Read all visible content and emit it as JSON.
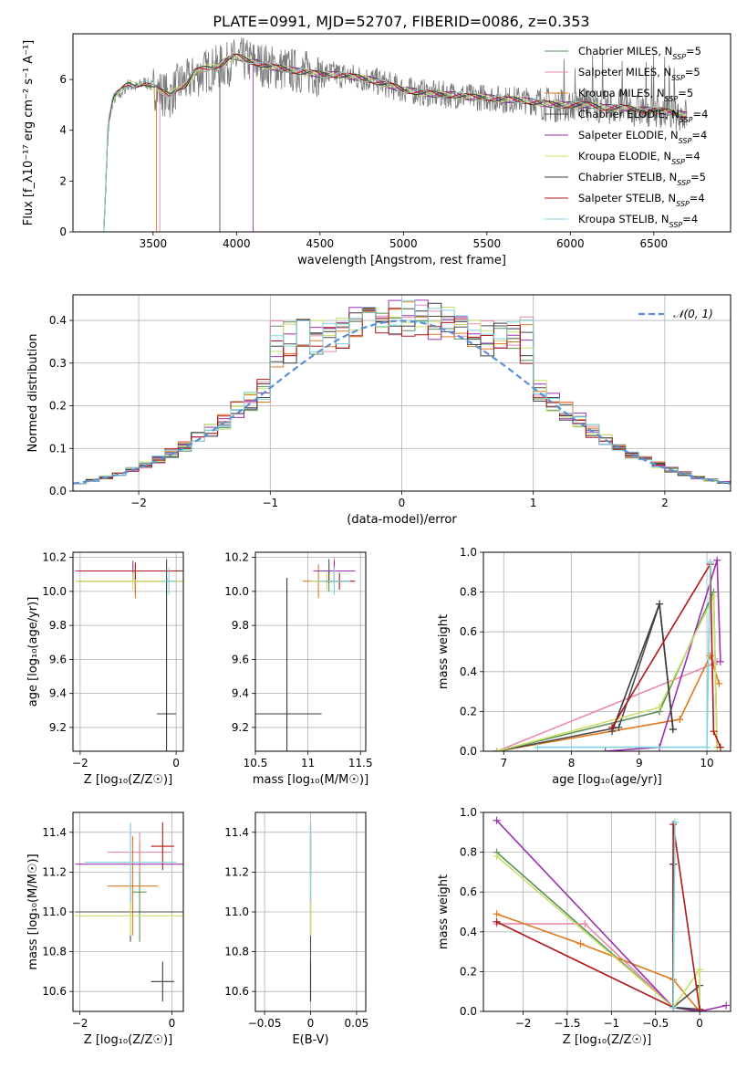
{
  "figure": {
    "title": "PLATE=0991, MJD=52707, FIBERID=0086, z=0.353"
  },
  "colors": {
    "Chabrier MILES": "#5b8f5b",
    "Salpeter MILES": "#e88aa8",
    "Kroupa MILES": "#e07a1f",
    "Chabrier ELODIE": "#4c4c4c",
    "Salpeter ELODIE": "#9b30b0",
    "Kroupa ELODIE": "#c8e06a",
    "Chabrier STELIB": "#3c3c3c",
    "Salpeter STELIB": "#b01818",
    "Kroupa STELIB": "#7fd3dc",
    "data": "#7a7a7a",
    "normal": "#5b8fd6"
  },
  "chart_data": [
    {
      "id": "spectrum",
      "type": "line",
      "title": "PLATE=0991, MJD=52707, FIBERID=0086, z=0.353",
      "xlabel": "wavelength [Angstrom, rest frame]",
      "ylabel": "Flux [f_λ10⁻¹⁷ erg cm⁻² s⁻¹ A⁻¹]",
      "xlim": [
        3020,
        6960
      ],
      "ylim": [
        0,
        7.8
      ],
      "xticks": [
        3500,
        4000,
        4500,
        5000,
        5500,
        6000,
        6500
      ],
      "yticks": [
        0,
        2,
        4,
        6
      ],
      "grid": false,
      "legend": "upper right",
      "legend_entries": [
        "Chabrier MILES, N_SSP=5",
        "Salpeter MILES, N_SSP=5",
        "Kroupa MILES, N_SSP=5",
        "Chabrier ELODIE, N_SSP=4",
        "Salpeter ELODIE, N_SSP=4",
        "Kroupa ELODIE, N_SSP=4",
        "Chabrier STELIB, N_SSP=5",
        "Salpeter STELIB, N_SSP=4",
        "Kroupa STELIB, N_SSP=4"
      ],
      "data_series": {
        "name": "data",
        "x": [
          3205,
          3230,
          3260,
          3300,
          3350,
          3400,
          3450,
          3500,
          3550,
          3600,
          3650,
          3700,
          3750,
          3800,
          3850,
          3900,
          3950,
          4000,
          4100,
          4200,
          4300,
          4400,
          4500,
          4600,
          4700,
          4800,
          4900,
          5000,
          5100,
          5200,
          5300,
          5400,
          5500,
          5600,
          5700,
          5800,
          5900,
          6000,
          6100,
          6200,
          6300,
          6400,
          6500,
          6600,
          6700
        ],
        "y": [
          0.0,
          4.2,
          5.2,
          5.4,
          5.8,
          5.7,
          5.9,
          5.7,
          5.5,
          5.3,
          5.8,
          5.9,
          6.1,
          6.3,
          6.4,
          6.5,
          6.6,
          6.8,
          6.7,
          6.5,
          6.4,
          6.3,
          6.2,
          6.2,
          6.1,
          6.0,
          5.8,
          5.6,
          5.5,
          5.4,
          5.4,
          5.3,
          5.3,
          5.2,
          5.2,
          5.1,
          5.0,
          5.0,
          5.0,
          4.9,
          4.9,
          4.8,
          4.8,
          4.7,
          4.6
        ]
      },
      "model_y": [
        0.0,
        4.2,
        5.3,
        5.5,
        5.8,
        5.8,
        5.9,
        5.7,
        5.5,
        5.4,
        5.7,
        5.8,
        6.3,
        6.4,
        6.5,
        6.6,
        6.8,
        6.9,
        6.7,
        6.5,
        6.4,
        6.3,
        6.2,
        6.2,
        6.1,
        6.0,
        5.8,
        5.6,
        5.5,
        5.4,
        5.4,
        5.3,
        5.3,
        5.2,
        5.2,
        5.1,
        5.0,
        5.0,
        5.0,
        4.9,
        4.9,
        4.8,
        4.8,
        4.7,
        4.6
      ],
      "model_start": [
        3205,
        3540,
        3520,
        3900,
        4100,
        3205,
        3205,
        3205,
        3205
      ]
    },
    {
      "id": "residuals",
      "type": "line",
      "xlabel": "(data-model)/error",
      "ylabel": "Normed distribution",
      "xlim": [
        -2.5,
        2.5
      ],
      "ylim": [
        0,
        0.46
      ],
      "xticks": [
        -2,
        -1,
        0,
        1,
        2
      ],
      "yticks": [
        0.0,
        0.1,
        0.2,
        0.3,
        0.4
      ],
      "grid": true,
      "legend": "upper right",
      "legend_entries": [
        "𝒩(0, 1)"
      ],
      "bin_width": 0.1
    },
    {
      "id": "age-vs-Z",
      "type": "scatter",
      "xlabel": "Z [log₁₀(Z/Z☉)]",
      "ylabel": "age  [log₁₀(age/yr)]",
      "xlim": [
        -2.15,
        0.15
      ],
      "ylim": [
        9.06,
        10.23
      ],
      "xticks": [
        -2,
        0
      ],
      "yticks": [
        9.2,
        9.4,
        9.6,
        9.8,
        10.0,
        10.2
      ],
      "grid": true,
      "points": [
        {
          "x": -0.85,
          "y": 10.06,
          "xerr": 1.2,
          "yerr": 0.06
        },
        {
          "x": -0.85,
          "y": 10.06,
          "xerr": 1.2,
          "yerr": 0.08
        },
        {
          "x": -0.85,
          "y": 10.06,
          "xerr": 1.2,
          "yerr": 0.1
        },
        {
          "x": -0.2,
          "y": 10.12,
          "xerr": 0.1,
          "yerr": 0.07
        },
        {
          "x": -0.9,
          "y": 10.12,
          "xerr": 1.2,
          "yerr": 0.06
        },
        {
          "x": -0.9,
          "y": 10.06,
          "xerr": 1.2,
          "yerr": 0.05
        },
        {
          "x": -0.2,
          "y": 9.28,
          "xerr": 0.2,
          "yerr": 0.8
        },
        {
          "x": -0.85,
          "y": 10.12,
          "xerr": 1.2,
          "yerr": 0.05
        },
        {
          "x": -0.15,
          "y": 10.06,
          "xerr": 0.15,
          "yerr": 0.08
        }
      ]
    },
    {
      "id": "age-vs-mass",
      "type": "scatter",
      "xlabel": "mass [log₁₀(M/M☉)]",
      "ylabel": "",
      "xlim": [
        10.5,
        11.55
      ],
      "ylim": [
        9.06,
        10.23
      ],
      "xticks": [
        10.5,
        11.0,
        11.5
      ],
      "yticks": [
        9.2,
        9.4,
        9.6,
        9.8,
        10.0,
        10.2
      ],
      "grid": true,
      "points": [
        {
          "x": 11.2,
          "y": 10.06,
          "xerr": 0.13,
          "yerr": 0.06
        },
        {
          "x": 11.25,
          "y": 10.12,
          "xerr": 0.15,
          "yerr": 0.08
        },
        {
          "x": 11.1,
          "y": 10.06,
          "xerr": 0.15,
          "yerr": 0.1
        },
        {
          "x": 11.2,
          "y": 10.12,
          "xerr": 0.1,
          "yerr": 0.07
        },
        {
          "x": 11.25,
          "y": 10.12,
          "xerr": 0.2,
          "yerr": 0.06
        },
        {
          "x": 11.18,
          "y": 10.06,
          "xerr": 0.15,
          "yerr": 0.05
        },
        {
          "x": 10.8,
          "y": 9.28,
          "xerr": 0.33,
          "yerr": 0.8
        },
        {
          "x": 11.3,
          "y": 10.06,
          "xerr": 0.15,
          "yerr": 0.05
        },
        {
          "x": 11.25,
          "y": 10.06,
          "xerr": 0.15,
          "yerr": 0.08
        }
      ]
    },
    {
      "id": "massweight-vs-age",
      "type": "line",
      "xlabel": "age  [log₁₀(age/yr)]",
      "ylabel": "mass weight",
      "xlim": [
        6.7,
        10.35
      ],
      "ylim": [
        0,
        1.0
      ],
      "xticks": [
        7,
        8,
        9,
        10
      ],
      "yticks": [
        0.0,
        0.2,
        0.4,
        0.6,
        0.8,
        1.0
      ],
      "grid": true,
      "lines": [
        {
          "x": [
            6.9,
            9.3,
            10.1,
            10.15
          ],
          "y": [
            0.0,
            0.2,
            0.8,
            0.02
          ]
        },
        {
          "x": [
            6.9,
            10.1,
            10.15
          ],
          "y": [
            0.0,
            0.44,
            0.45
          ]
        },
        {
          "x": [
            6.9,
            9.6,
            10.05,
            10.18
          ],
          "y": [
            0.0,
            0.16,
            0.48,
            0.34
          ]
        },
        {
          "x": [
            6.9,
            8.7,
            9.3,
            9.5
          ],
          "y": [
            0.0,
            0.12,
            0.74,
            0.11
          ]
        },
        {
          "x": [
            8.5,
            9.3,
            10.15,
            10.2
          ],
          "y": [
            0.0,
            0.02,
            0.96,
            0.45
          ]
        },
        {
          "x": [
            6.9,
            9.3,
            10.1,
            10.15
          ],
          "y": [
            0.0,
            0.22,
            0.78,
            0.02
          ]
        },
        {
          "x": [
            8.6,
            9.3,
            9.5
          ],
          "y": [
            0.1,
            0.74,
            0.11
          ]
        },
        {
          "x": [
            8.6,
            10.05,
            10.1,
            10.2
          ],
          "y": [
            0.12,
            0.94,
            0.1,
            0.02
          ]
        },
        {
          "x": [
            7.5,
            10.0,
            10.05
          ],
          "y": [
            0.02,
            0.02,
            0.95
          ]
        }
      ]
    },
    {
      "id": "mass-vs-Z",
      "type": "scatter",
      "xlabel": "Z [log₁₀(Z/Z☉)]",
      "ylabel": "mass [log₁₀(M/M☉)]",
      "xlim": [
        -2.15,
        0.25
      ],
      "ylim": [
        10.5,
        11.5
      ],
      "xticks": [
        -2,
        0
      ],
      "yticks": [
        10.6,
        10.8,
        11.0,
        11.2,
        11.4
      ],
      "grid": true,
      "points": [
        {
          "x": -0.7,
          "y": 11.1,
          "xerr": 0.15,
          "yerr": 0.25
        },
        {
          "x": -0.7,
          "y": 11.3,
          "xerr": 0.7,
          "yerr": 0.1
        },
        {
          "x": -0.85,
          "y": 11.13,
          "xerr": 0.55,
          "yerr": 0.25
        },
        {
          "x": -0.9,
          "y": 11.0,
          "xerr": 1.2,
          "yerr": 0.15
        },
        {
          "x": -0.9,
          "y": 11.24,
          "xerr": 1.2,
          "yerr": 0.2
        },
        {
          "x": -0.9,
          "y": 10.98,
          "xerr": 1.2,
          "yerr": 0.1
        },
        {
          "x": -0.2,
          "y": 10.65,
          "xerr": 0.25,
          "yerr": 0.1
        },
        {
          "x": -0.2,
          "y": 11.33,
          "xerr": 0.25,
          "yerr": 0.12
        },
        {
          "x": -0.9,
          "y": 11.25,
          "xerr": 1.0,
          "yerr": 0.2
        }
      ]
    },
    {
      "id": "mass-vs-EBV",
      "type": "scatter",
      "xlabel": "E(B-V)",
      "ylabel": "",
      "xlim": [
        -0.06,
        0.06
      ],
      "ylim": [
        10.5,
        11.5
      ],
      "xticks": [
        -0.05,
        0.0,
        0.05
      ],
      "yticks": [
        10.6,
        10.8,
        11.0,
        11.2,
        11.4
      ],
      "grid": true,
      "points": [
        {
          "x": 0.0,
          "y": 11.1,
          "xerr": 0.0,
          "yerr": 0.25
        },
        {
          "x": 0.0,
          "y": 11.3,
          "xerr": 0.0,
          "yerr": 0.1
        },
        {
          "x": 0.0,
          "y": 11.13,
          "xerr": 0.0,
          "yerr": 0.25
        },
        {
          "x": 0.0,
          "y": 10.8,
          "xerr": 0.0,
          "yerr": 0.25
        },
        {
          "x": 0.0,
          "y": 11.24,
          "xerr": 0.0,
          "yerr": 0.2
        },
        {
          "x": 0.0,
          "y": 10.98,
          "xerr": 0.0,
          "yerr": 0.1
        },
        {
          "x": 0.0,
          "y": 10.65,
          "xerr": 0.0,
          "yerr": 0.1
        },
        {
          "x": 0.0,
          "y": 11.33,
          "xerr": 0.0,
          "yerr": 0.12
        },
        {
          "x": 0.0,
          "y": 11.25,
          "xerr": 0.0,
          "yerr": 0.2
        }
      ]
    },
    {
      "id": "massweight-vs-Z",
      "type": "line",
      "xlabel": "Z [log₁₀(Z/Z☉)]",
      "ylabel": "mass weight",
      "xlim": [
        -2.45,
        0.35
      ],
      "ylim": [
        0,
        1.0
      ],
      "xticks": [
        -2.0,
        -1.5,
        -1.0,
        -0.5,
        0.0
      ],
      "yticks": [
        0.0,
        0.2,
        0.4,
        0.6,
        0.8,
        1.0
      ],
      "grid": true,
      "lines": [
        {
          "x": [
            -2.3,
            -0.3,
            0.0
          ],
          "y": [
            0.8,
            0.02,
            0.0
          ]
        },
        {
          "x": [
            -2.3,
            -1.3,
            -0.3
          ],
          "y": [
            0.44,
            0.44,
            0.02
          ]
        },
        {
          "x": [
            -2.3,
            -1.35,
            -0.3,
            0.0
          ],
          "y": [
            0.49,
            0.34,
            0.16,
            0.0
          ]
        },
        {
          "x": [
            -0.3,
            -0.3,
            0.0,
            0.0
          ],
          "y": [
            0.74,
            0.02,
            0.13,
            0.01
          ]
        },
        {
          "x": [
            -2.3,
            -0.3,
            0.0,
            0.3
          ],
          "y": [
            0.96,
            0.02,
            0.0,
            0.03
          ]
        },
        {
          "x": [
            -2.3,
            -0.3,
            0.0,
            0.0
          ],
          "y": [
            0.78,
            0.02,
            0.21,
            0.01
          ]
        },
        {
          "x": [
            -0.3,
            -0.3,
            0.0
          ],
          "y": [
            0.74,
            0.02,
            0.01
          ]
        },
        {
          "x": [
            -2.3,
            -0.3,
            -0.3,
            0.0
          ],
          "y": [
            0.45,
            0.02,
            0.94,
            0.01
          ]
        },
        {
          "x": [
            -0.3,
            -0.28,
            -0.3
          ],
          "y": [
            0.02,
            0.95,
            0.02
          ]
        }
      ]
    }
  ]
}
